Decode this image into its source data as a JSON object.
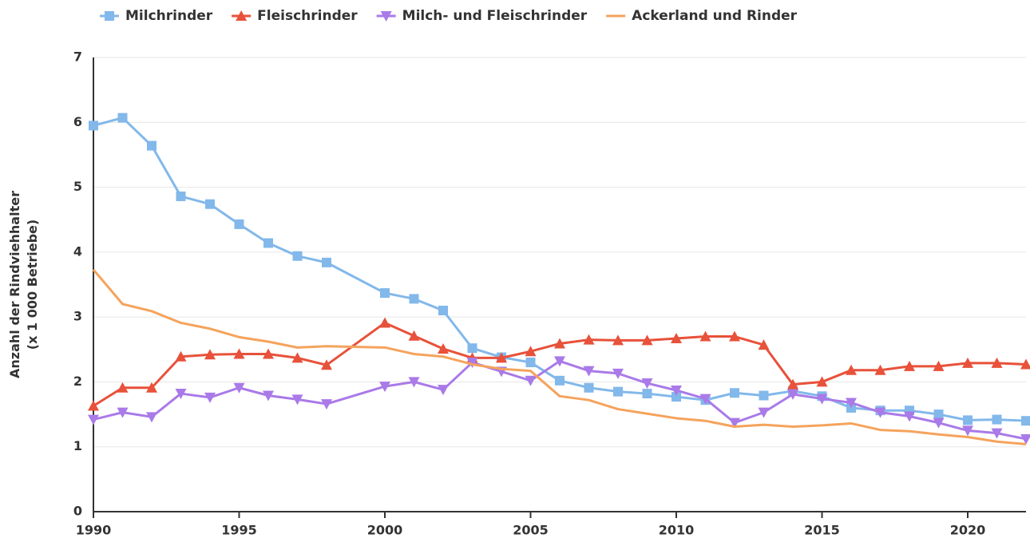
{
  "chart_data": {
    "type": "line",
    "ylabel": [
      "Anzahl der Rindviehhalter",
      "(x 1 000 Betriebe)"
    ],
    "x": [
      1990,
      1991,
      1992,
      1993,
      1994,
      1995,
      1996,
      1997,
      1998,
      2000,
      2001,
      2002,
      2003,
      2004,
      2005,
      2006,
      2007,
      2008,
      2009,
      2010,
      2011,
      2012,
      2013,
      2014,
      2015,
      2016,
      2017,
      2018,
      2019,
      2020,
      2021,
      2022
    ],
    "series": [
      {
        "name": "Milchrinder",
        "color": "#82b8ea",
        "marker": "square",
        "values": [
          5.95,
          6.07,
          5.64,
          4.86,
          4.74,
          4.43,
          4.14,
          3.94,
          3.84,
          3.37,
          3.28,
          3.1,
          2.52,
          2.38,
          2.3,
          2.02,
          1.91,
          1.85,
          1.82,
          1.77,
          1.72,
          1.83,
          1.79,
          1.86,
          1.78,
          1.6,
          1.56,
          1.56,
          1.5,
          1.41,
          1.42,
          1.4
        ]
      },
      {
        "name": "Fleischrinder",
        "color": "#e8513a",
        "marker": "triangle-up",
        "values": [
          1.63,
          1.91,
          1.91,
          2.39,
          2.42,
          2.43,
          2.43,
          2.37,
          2.26,
          2.91,
          2.71,
          2.51,
          2.37,
          2.37,
          2.47,
          2.59,
          2.65,
          2.64,
          2.64,
          2.67,
          2.7,
          2.7,
          2.57,
          1.96,
          2.0,
          2.18,
          2.18,
          2.24,
          2.24,
          2.29,
          2.29,
          2.27
        ]
      },
      {
        "name": "Milch- und Fleischrinder",
        "color": "#a97ae8",
        "marker": "triangle-down",
        "values": [
          1.42,
          1.53,
          1.46,
          1.82,
          1.76,
          1.91,
          1.79,
          1.73,
          1.66,
          1.93,
          2.0,
          1.88,
          2.3,
          2.16,
          2.02,
          2.32,
          2.17,
          2.13,
          1.98,
          1.87,
          1.74,
          1.37,
          1.53,
          1.81,
          1.74,
          1.68,
          1.53,
          1.47,
          1.37,
          1.25,
          1.21,
          1.12
        ]
      },
      {
        "name": "Ackerland und Rinder",
        "color": "#f5a35c",
        "marker": "none",
        "values": [
          3.73,
          3.2,
          3.09,
          2.91,
          2.82,
          2.69,
          2.62,
          2.53,
          2.55,
          2.53,
          2.43,
          2.39,
          2.27,
          2.2,
          2.17,
          1.78,
          1.72,
          1.58,
          1.51,
          1.44,
          1.4,
          1.31,
          1.34,
          1.31,
          1.33,
          1.36,
          1.26,
          1.24,
          1.19,
          1.15,
          1.08,
          1.04
        ]
      }
    ],
    "xlim": [
      1990,
      2022
    ],
    "xticks": [
      1990,
      1995,
      2000,
      2005,
      2010,
      2015,
      2020
    ],
    "ylim": [
      0,
      7
    ],
    "yticks": [
      0,
      1,
      2,
      3,
      4,
      5,
      6,
      7
    ],
    "grid": true,
    "legend": "top"
  }
}
